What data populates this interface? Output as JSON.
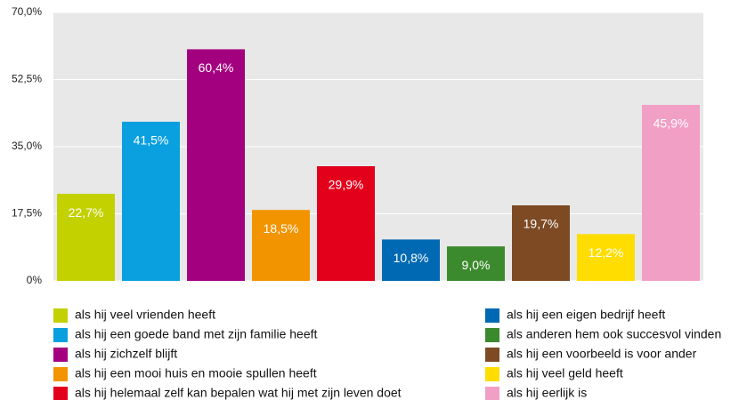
{
  "chart_data": {
    "type": "bar",
    "categories": [
      "als hij veel vrienden heeft",
      "als hij een goede band met zijn familie heeft",
      "als hij zichzelf blijft",
      "als hij een mooi huis en mooie spullen heeft",
      "als hij helemaal zelf kan bepalen wat hij met zijn leven doet",
      "als hij een eigen bedrijf heeft",
      "als anderen hem ook succesvol vinden",
      "als hij een voorbeeld is voor ander",
      "als hij veel geld heeft",
      "als hij eerlijk is"
    ],
    "values": [
      22.7,
      41.5,
      60.4,
      18.5,
      29.9,
      10.8,
      9.0,
      19.7,
      12.2,
      45.9
    ],
    "value_labels": [
      "22,7%",
      "41,5%",
      "60,4%",
      "18,5%",
      "29,9%",
      "10,8%",
      "9,0%",
      "19,7%",
      "12,2%",
      "45,9%"
    ],
    "colors": [
      "#c3d100",
      "#0aa0e0",
      "#a3007f",
      "#f29400",
      "#e3001b",
      "#0069b4",
      "#3c8a2e",
      "#7d4a24",
      "#ffdd00",
      "#f29fc5"
    ],
    "ylim": [
      0,
      70
    ],
    "yticks": [
      {
        "value": 0,
        "label": "0%"
      },
      {
        "value": 17.5,
        "label": "17,5%"
      },
      {
        "value": 35,
        "label": "35,0%"
      },
      {
        "value": 52.5,
        "label": "52,5%"
      },
      {
        "value": 70,
        "label": "70,0%"
      }
    ],
    "grid": true
  }
}
